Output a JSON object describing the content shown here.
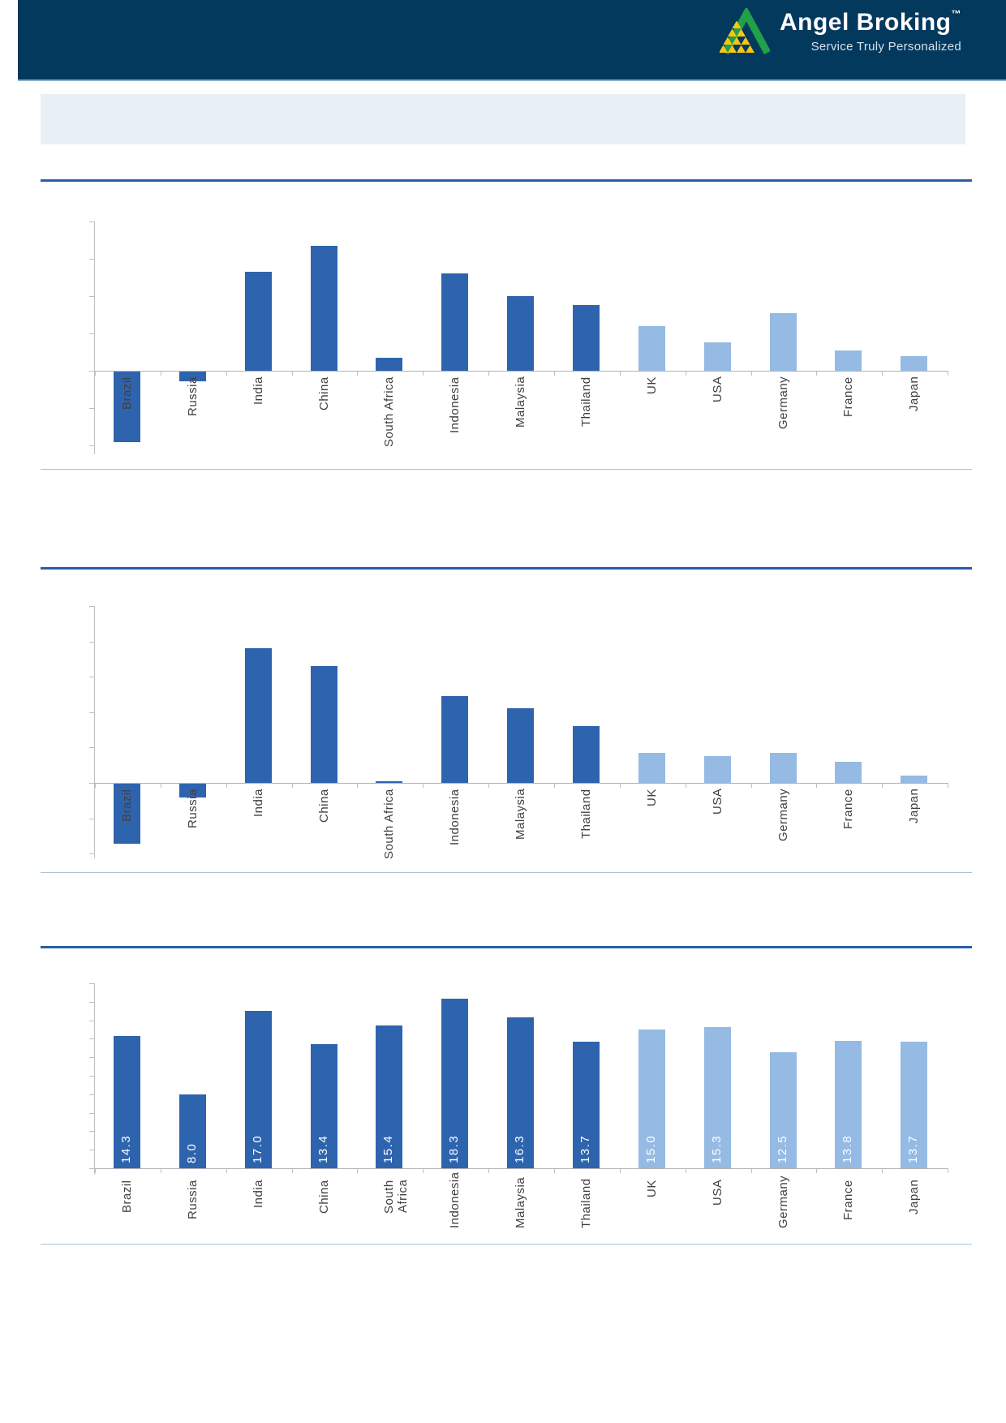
{
  "header": {
    "brand": "Angel Broking",
    "trademark": "™",
    "tagline": "Service Truly Personalized"
  },
  "banner": {
    "text": ""
  },
  "colors": {
    "header_bar": "#04395E",
    "logo_green": "#21A049",
    "logo_yellow": "#F9C513",
    "banner_bg": "#E9EFF6",
    "divider_dark": "#2B5CA8",
    "divider_light": "#A9C3D6",
    "axis": "#BFBFBF",
    "label_text": "#404040",
    "bar_dark": "#2E64AE",
    "bar_light": "#95BAE3"
  },
  "chart_data": [
    {
      "type": "bar",
      "title": "",
      "categories": [
        "Brazil",
        "Russia",
        "India",
        "China",
        "South Africa",
        "Indonesia",
        "Malaysia",
        "Thailand",
        "UK",
        "USA",
        "Germany",
        "France",
        "Japan"
      ],
      "values": [
        -3.8,
        -0.5,
        5.3,
        6.7,
        0.7,
        5.2,
        4.0,
        3.5,
        2.4,
        1.5,
        3.1,
        1.1,
        0.8
      ],
      "groups": [
        "emerging",
        "emerging",
        "emerging",
        "emerging",
        "emerging",
        "emerging",
        "emerging",
        "emerging",
        "developed",
        "developed",
        "developed",
        "developed",
        "developed"
      ],
      "group_colors": {
        "emerging": "#2E64AE",
        "developed": "#95BAE3"
      },
      "ylim": [
        -4,
        8
      ],
      "tick_step": 2,
      "axis_tick_labels": "none",
      "legend": "none",
      "grid": false,
      "value_labels": false
    },
    {
      "type": "bar",
      "title": "",
      "categories": [
        "Brazil",
        "Russia",
        "India",
        "China",
        "South Africa",
        "Indonesia",
        "Malaysia",
        "Thailand",
        "UK",
        "USA",
        "Germany",
        "France",
        "Japan"
      ],
      "values": [
        -3.4,
        -0.8,
        7.6,
        6.6,
        0.1,
        4.9,
        4.2,
        3.2,
        1.7,
        1.5,
        1.7,
        1.2,
        0.4
      ],
      "groups": [
        "emerging",
        "emerging",
        "emerging",
        "emerging",
        "emerging",
        "emerging",
        "emerging",
        "emerging",
        "developed",
        "developed",
        "developed",
        "developed",
        "developed"
      ],
      "group_colors": {
        "emerging": "#2E64AE",
        "developed": "#95BAE3"
      },
      "ylim": [
        -4,
        10
      ],
      "tick_step": 2,
      "axis_tick_labels": "none",
      "legend": "none",
      "grid": false,
      "value_labels": false
    },
    {
      "type": "bar",
      "title": "",
      "categories": [
        "Brazil",
        "Russia",
        "India",
        "China",
        "South Africa",
        "Indonesia",
        "Malaysia",
        "Thailand",
        "UK",
        "USA",
        "Germany",
        "France",
        "Japan"
      ],
      "values": [
        14.3,
        8.0,
        17.0,
        13.4,
        15.4,
        18.3,
        16.3,
        13.7,
        15.0,
        15.3,
        12.5,
        13.8,
        13.7
      ],
      "groups": [
        "emerging",
        "emerging",
        "emerging",
        "emerging",
        "emerging",
        "emerging",
        "emerging",
        "emerging",
        "developed",
        "developed",
        "developed",
        "developed",
        "developed"
      ],
      "group_colors": {
        "emerging": "#2E64AE",
        "developed": "#95BAE3"
      },
      "ylim": [
        0,
        20
      ],
      "tick_step": 2,
      "axis_tick_labels": "none",
      "legend": "none",
      "grid": false,
      "value_labels": true,
      "value_label_color": "#FFFFFF"
    }
  ]
}
